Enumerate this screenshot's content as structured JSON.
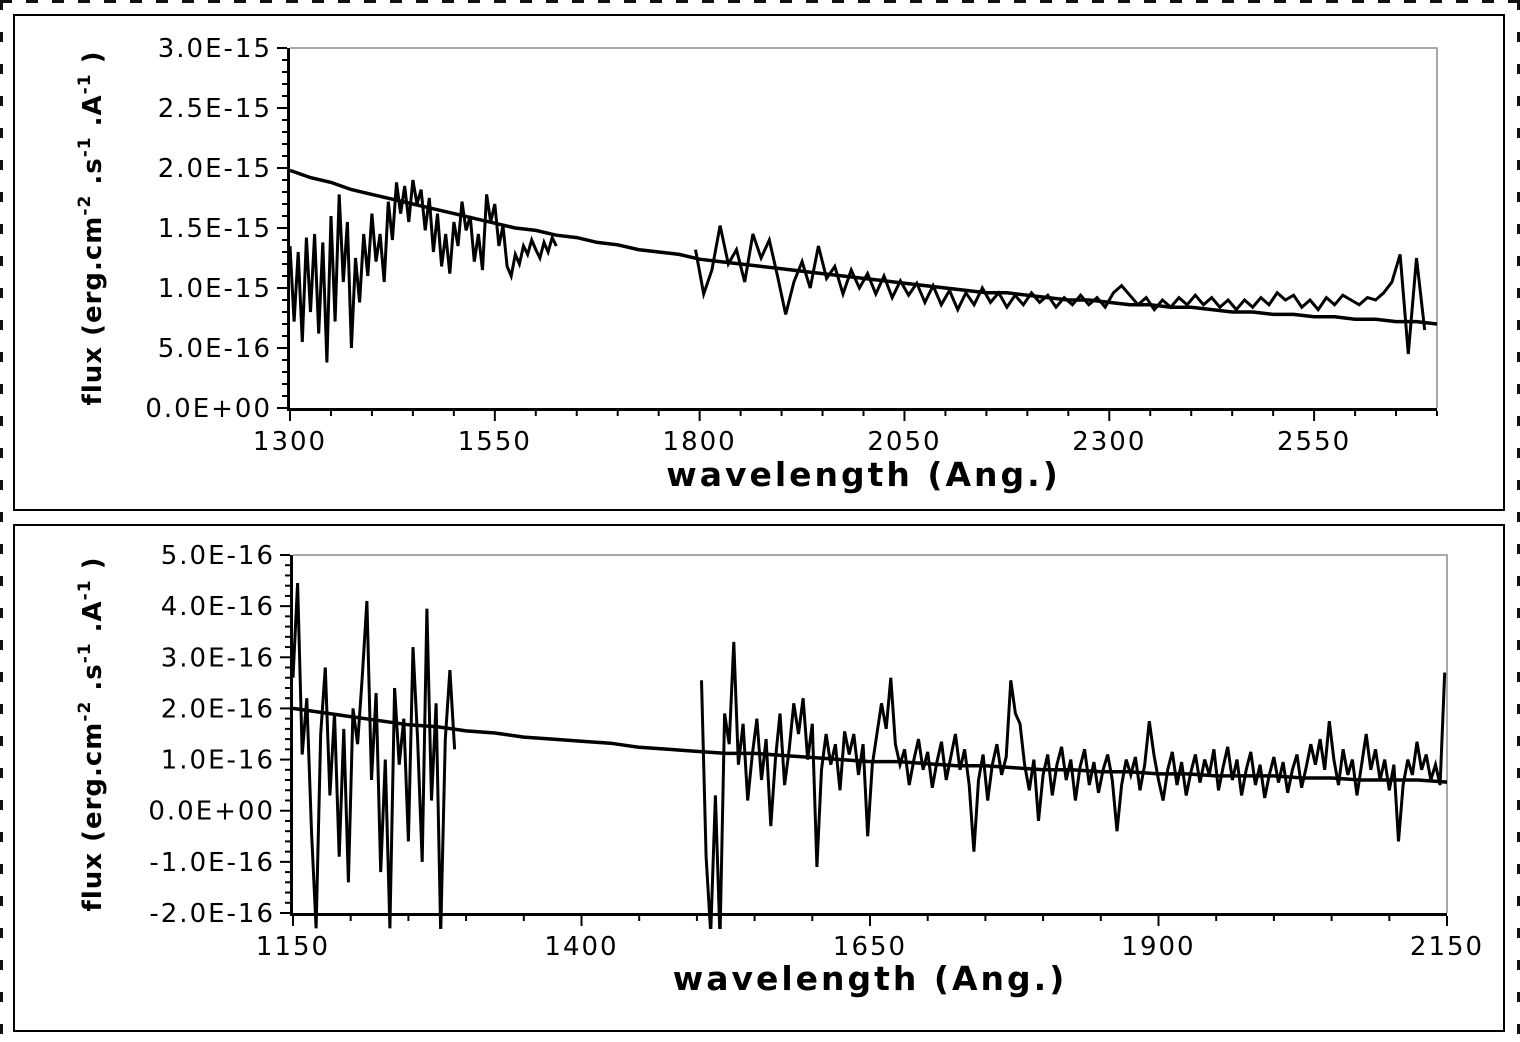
{
  "figure": {
    "background": "#ffffff",
    "panel_border_color": "#000000",
    "line_color": "#000000",
    "plot_frame_color": "#8c8c8c",
    "description": "Two-panel UV spectrum figure: observed noisy flux spectra with smooth continuum fit curves"
  },
  "chart_data": [
    {
      "id": "top",
      "type": "line",
      "title": "",
      "xlabel": "wavelength (Ang.)",
      "ylabel": "flux (erg.cm^-2 .s^-1 .A^-1 )",
      "ylabel_segments": [
        {
          "text": "flux (erg.cm",
          "sup": false
        },
        {
          "text": "-2",
          "sup": true
        },
        {
          "text": " .s",
          "sup": false
        },
        {
          "text": "-1",
          "sup": true
        },
        {
          "text": " .A",
          "sup": false
        },
        {
          "text": "-1",
          "sup": true
        },
        {
          "text": " )",
          "sup": false
        }
      ],
      "grid": false,
      "legend": "none",
      "x_axis": {
        "min": 1300,
        "max": 2700,
        "major_step": 250,
        "minor_step": 50,
        "ticks": [
          {
            "value": 1300,
            "label": "1300"
          },
          {
            "value": 1550,
            "label": "1550"
          },
          {
            "value": 1800,
            "label": "1800"
          },
          {
            "value": 2050,
            "label": "2050"
          },
          {
            "value": 2300,
            "label": "2300"
          },
          {
            "value": 2550,
            "label": "2550"
          }
        ]
      },
      "y_axis": {
        "min": 0,
        "max": 3,
        "major_step": 0.5,
        "minor_step": 0.1,
        "scale_factor": 1e-15,
        "ticks": [
          {
            "value": 3.0,
            "label": "3.0E-15"
          },
          {
            "value": 2.5,
            "label": "2.5E-15"
          },
          {
            "value": 2.0,
            "label": "2.0E-15"
          },
          {
            "value": 1.5,
            "label": "1.5E-15"
          },
          {
            "value": 1.0,
            "label": "1.0E-15"
          },
          {
            "value": 0.5,
            "label": "5.0E-16"
          },
          {
            "value": 0.0,
            "label": "0.0E+00"
          }
        ]
      },
      "series": [
        {
          "name": "observed-spectrum",
          "color": "#000000",
          "width": 3,
          "segments": [
            {
              "x_start": 1300,
              "x_step": 5,
              "values": [
                1.35,
                0.72,
                1.3,
                0.55,
                1.42,
                0.8,
                1.45,
                0.62,
                1.38,
                0.38,
                1.6,
                0.72,
                1.78,
                1.05,
                1.55,
                0.5,
                1.25,
                0.88,
                1.45,
                1.1,
                1.62,
                1.22,
                1.45,
                1.05,
                1.72,
                1.4,
                1.88,
                1.62,
                1.85,
                1.55,
                1.9,
                1.7,
                1.82,
                1.48,
                1.75,
                1.3,
                1.62,
                1.18,
                1.45,
                1.12,
                1.55,
                1.35,
                1.72,
                1.48,
                1.6,
                1.22,
                1.45,
                1.15,
                1.78,
                1.55,
                1.7,
                1.35,
                1.52,
                1.18,
                1.1,
                1.28,
                1.2,
                1.35,
                1.28,
                1.4,
                1.32,
                1.25,
                1.38,
                1.3,
                1.42,
                1.35
              ]
            },
            {
              "x_start": 1795,
              "x_step": 10,
              "values": [
                1.32,
                0.95,
                1.15,
                1.52,
                1.2,
                1.32,
                1.05,
                1.45,
                1.25,
                1.4,
                1.1,
                0.78,
                1.05,
                1.22,
                1.0,
                1.35,
                1.08,
                1.18,
                0.95,
                1.15,
                1.0,
                1.12,
                0.95,
                1.1,
                0.92,
                1.06,
                0.94,
                1.04,
                0.88,
                1.02,
                0.86,
                0.98,
                0.82,
                0.96,
                0.86,
                1.0,
                0.88,
                0.96,
                0.84,
                0.94,
                0.86,
                0.96,
                0.88,
                0.94,
                0.84,
                0.92,
                0.86,
                0.94,
                0.86,
                0.92,
                0.84,
                0.96,
                1.02,
                0.94,
                0.86,
                0.92,
                0.82,
                0.9,
                0.84,
                0.92,
                0.86,
                0.94,
                0.86,
                0.92,
                0.84,
                0.9,
                0.82,
                0.9,
                0.84,
                0.92,
                0.86,
                0.96,
                0.9,
                0.94,
                0.84,
                0.9,
                0.82,
                0.92,
                0.86,
                0.94,
                0.9,
                0.86,
                0.92,
                0.9,
                0.96,
                1.05,
                1.28,
                0.45,
                1.25,
                0.65
              ]
            }
          ]
        },
        {
          "name": "continuum-fit",
          "color": "#000000",
          "width": 3.5,
          "segments": [
            {
              "x_start": 1300,
              "x_step": 25,
              "values": [
                1.98,
                1.92,
                1.88,
                1.82,
                1.78,
                1.74,
                1.7,
                1.66,
                1.62,
                1.58,
                1.54,
                1.5,
                1.48,
                1.44,
                1.42,
                1.38,
                1.36,
                1.32,
                1.3,
                1.28,
                1.24,
                1.22,
                1.2,
                1.18,
                1.16,
                1.14,
                1.12,
                1.1,
                1.08,
                1.06,
                1.04,
                1.02,
                1.0,
                0.98,
                0.96,
                0.96,
                0.94,
                0.92,
                0.9,
                0.9,
                0.88,
                0.86,
                0.86,
                0.84,
                0.84,
                0.82,
                0.8,
                0.8,
                0.78,
                0.78,
                0.76,
                0.76,
                0.74,
                0.74,
                0.72,
                0.72,
                0.7
              ]
            }
          ]
        }
      ]
    },
    {
      "id": "bottom",
      "type": "line",
      "title": "",
      "xlabel": "wavelength (Ang.)",
      "ylabel": "flux (erg.cm^-2 .s^-1 .A^-1 )",
      "ylabel_segments": [
        {
          "text": "flux (erg.cm",
          "sup": false
        },
        {
          "text": "-2",
          "sup": true
        },
        {
          "text": " .s",
          "sup": false
        },
        {
          "text": "-1",
          "sup": true
        },
        {
          "text": " .A",
          "sup": false
        },
        {
          "text": "-1",
          "sup": true
        },
        {
          "text": " )",
          "sup": false
        }
      ],
      "grid": false,
      "legend": "none",
      "x_axis": {
        "min": 1150,
        "max": 2150,
        "major_step": 250,
        "minor_step": 50,
        "ticks": [
          {
            "value": 1150,
            "label": "1150"
          },
          {
            "value": 1400,
            "label": "1400"
          },
          {
            "value": 1650,
            "label": "1650"
          },
          {
            "value": 1900,
            "label": "1900"
          },
          {
            "value": 2150,
            "label": "2150"
          }
        ]
      },
      "y_axis": {
        "min": -2,
        "max": 5,
        "major_step": 1,
        "minor_step": 0.2,
        "scale_factor": 1e-16,
        "ticks": [
          {
            "value": 5,
            "label": "5.0E-16"
          },
          {
            "value": 4,
            "label": "4.0E-16"
          },
          {
            "value": 3,
            "label": "3.0E-16"
          },
          {
            "value": 2,
            "label": "2.0E-16"
          },
          {
            "value": 1,
            "label": "1.0E-16"
          },
          {
            "value": 0,
            "label": "0.0E+00"
          },
          {
            "value": -1,
            "label": "-1.0E-16"
          },
          {
            "value": -2,
            "label": "-2.0E-16"
          }
        ]
      },
      "series": [
        {
          "name": "observed-spectrum",
          "color": "#000000",
          "width": 3,
          "segments": [
            {
              "x_start": 1150,
              "x_step": 4,
              "values": [
                2.6,
                4.45,
                1.1,
                2.2,
                -0.4,
                -2.3,
                1.5,
                2.8,
                0.3,
                1.9,
                -0.9,
                1.6,
                -1.4,
                2.0,
                1.3,
                2.6,
                4.1,
                0.6,
                2.3,
                -1.2,
                1.0,
                -2.3,
                2.4,
                0.9,
                1.8,
                -0.6,
                3.2,
                1.4,
                -1.0,
                3.95,
                0.2,
                2.1,
                -2.4,
                1.4,
                2.75,
                1.2
              ]
            },
            {
              "x_start": 1504,
              "x_step": 4,
              "values": [
                2.55,
                -0.9,
                -2.4,
                0.3,
                -2.5,
                1.9,
                1.3,
                3.3,
                0.9,
                1.7,
                0.2,
                1.1,
                1.8,
                0.6,
                1.4,
                -0.3,
                1.0,
                1.9,
                0.5,
                1.2,
                2.1,
                1.5,
                2.2,
                1.0,
                1.7,
                -1.1,
                0.8,
                1.5,
                0.9,
                1.3,
                0.4,
                1.55,
                1.1,
                1.5,
                0.7,
                1.3,
                -0.5,
                0.9,
                1.5,
                2.1,
                1.6,
                2.6,
                1.3,
                0.9,
                1.2,
                0.5,
                1.0,
                1.4,
                0.8,
                1.15,
                0.45,
                0.95,
                1.35,
                0.6,
                1.05,
                1.5,
                0.8,
                1.2,
                0.5,
                -0.8,
                0.6,
                1.1,
                0.2,
                0.9,
                1.3,
                0.7,
                1.05,
                2.55,
                1.9,
                1.7,
                0.9,
                0.4,
                1.0,
                -0.2,
                0.7,
                1.1,
                0.3,
                0.9,
                1.25,
                0.6,
                1.0,
                0.2,
                0.85,
                1.2,
                0.5,
                0.95,
                0.35,
                0.8,
                1.1,
                0.6,
                -0.4,
                0.5,
                1.0,
                0.7,
                1.05,
                0.4,
                0.9,
                1.75,
                1.1,
                0.6,
                0.2,
                0.8,
                1.15,
                0.5,
                0.95,
                0.3,
                0.75,
                1.1,
                0.55,
                1.0,
                0.7,
                1.2,
                0.4,
                0.85,
                1.25,
                0.6,
                1.0,
                0.3,
                0.8,
                1.15,
                0.5,
                0.9,
                0.25,
                0.7,
                1.05,
                0.55,
                0.95,
                0.35,
                0.8,
                1.1,
                0.45,
                0.85,
                1.3,
                0.9,
                1.4,
                0.8,
                1.75,
                1.0,
                0.5,
                1.2,
                0.7,
                1.0,
                0.3,
                0.9,
                1.5,
                0.8,
                1.2,
                0.6,
                1.0,
                0.4,
                0.9,
                -0.6,
                0.5,
                1.0,
                0.7,
                1.35,
                0.8,
                1.1,
                0.6,
                0.9,
                0.5,
                2.7
              ]
            }
          ]
        },
        {
          "name": "continuum-fit",
          "color": "#000000",
          "width": 3.5,
          "segments": [
            {
              "x_start": 1150,
              "x_step": 25,
              "values": [
                2.0,
                1.92,
                1.84,
                1.76,
                1.68,
                1.64,
                1.56,
                1.52,
                1.44,
                1.4,
                1.36,
                1.32,
                1.24,
                1.2,
                1.16,
                1.12,
                1.12,
                1.08,
                1.04,
                1.0,
                0.96,
                0.96,
                0.92,
                0.88,
                0.88,
                0.84,
                0.8,
                0.8,
                0.76,
                0.76,
                0.72,
                0.72,
                0.68,
                0.68,
                0.68,
                0.64,
                0.64,
                0.6,
                0.6,
                0.6,
                0.56
              ]
            }
          ]
        }
      ]
    }
  ]
}
